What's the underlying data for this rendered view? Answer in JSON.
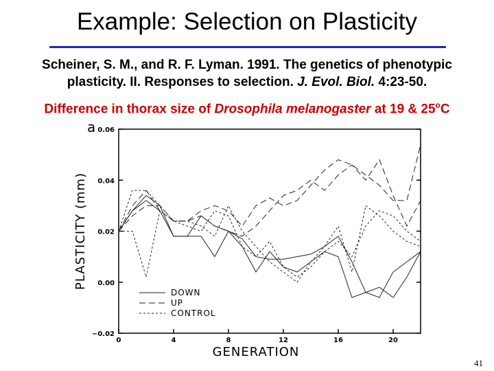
{
  "slide": {
    "title": "Example: Selection on Plasticity",
    "citation_line1": "Scheiner, S. M., and R. F. Lyman. 1991. The genetics of phenotypic",
    "citation_line2_a": "plasticity. II. Responses to selection. ",
    "citation_line2_journal": "J. Evol. Biol.",
    "citation_line2_b": " 4:23-50.",
    "subtitle_a": "Difference in thorax size of ",
    "subtitle_species": "Drosophila melanogaster",
    "subtitle_b": " at 19 & 25",
    "subtitle_degree": "o",
    "subtitle_c": "C",
    "page_number": "41",
    "rule_color": "#2222cc",
    "subtitle_color": "#cc0000"
  },
  "chart_data": {
    "type": "line",
    "panel_label": "a",
    "xlabel": "GENERATION",
    "ylabel": "PLASTICITY  (mm)",
    "xlim": [
      0,
      22
    ],
    "ylim": [
      -0.02,
      0.06
    ],
    "xticks": [
      0,
      4,
      8,
      12,
      16,
      20
    ],
    "yticks": [
      -0.02,
      0.0,
      0.02,
      0.04,
      0.06
    ],
    "ytick_labels": [
      "−0.02",
      "0.00",
      "0.02",
      "0.04",
      "0.06"
    ],
    "grid": false,
    "legend_position": "bottom-left",
    "series": [
      {
        "name": "DOWN",
        "style": "solid",
        "replicate": 1,
        "x": [
          0,
          1,
          2,
          3,
          4,
          5,
          6,
          7,
          8,
          9,
          10,
          11,
          12,
          13,
          14,
          15,
          16,
          17,
          18,
          19,
          20,
          21,
          22
        ],
        "y": [
          0.02,
          0.028,
          0.032,
          0.028,
          0.018,
          0.018,
          0.026,
          0.022,
          0.02,
          0.017,
          0.01,
          0.009,
          0.009,
          0.01,
          0.011,
          0.014,
          0.018,
          0.008,
          -0.004,
          -0.006,
          0.004,
          0.008,
          0.012
        ]
      },
      {
        "name": "DOWN",
        "style": "solid",
        "replicate": 2,
        "x": [
          0,
          1,
          2,
          3,
          4,
          5,
          6,
          7,
          8,
          9,
          10,
          11,
          12,
          13,
          14,
          15,
          16,
          17,
          18,
          19,
          20,
          21,
          22
        ],
        "y": [
          0.02,
          0.028,
          0.034,
          0.03,
          0.018,
          0.018,
          0.018,
          0.01,
          0.02,
          0.014,
          0.004,
          0.012,
          0.006,
          0.004,
          0.008,
          0.012,
          0.01,
          -0.006,
          -0.004,
          -0.002,
          -0.006,
          0.002,
          0.012
        ]
      },
      {
        "name": "UP",
        "style": "dashed",
        "replicate": 1,
        "x": [
          0,
          1,
          2,
          3,
          4,
          5,
          6,
          7,
          8,
          9,
          10,
          11,
          12,
          13,
          14,
          15,
          16,
          17,
          18,
          19,
          20,
          21,
          22
        ],
        "y": [
          0.02,
          0.026,
          0.03,
          0.03,
          0.024,
          0.024,
          0.028,
          0.03,
          0.028,
          0.022,
          0.03,
          0.033,
          0.03,
          0.032,
          0.038,
          0.044,
          0.048,
          0.046,
          0.042,
          0.038,
          0.032,
          0.032,
          0.054
        ]
      },
      {
        "name": "UP",
        "style": "dashed",
        "replicate": 2,
        "x": [
          0,
          1,
          2,
          3,
          4,
          5,
          6,
          7,
          8,
          9,
          10,
          11,
          12,
          13,
          14,
          15,
          16,
          17,
          18,
          19,
          20,
          21,
          22
        ],
        "y": [
          0.02,
          0.03,
          0.036,
          0.028,
          0.024,
          0.024,
          0.026,
          0.022,
          0.02,
          0.018,
          0.022,
          0.028,
          0.034,
          0.036,
          0.04,
          0.036,
          0.042,
          0.046,
          0.04,
          0.048,
          0.034,
          0.022,
          0.032
        ]
      },
      {
        "name": "CONTROL",
        "style": "dotted",
        "replicate": 1,
        "x": [
          0,
          1,
          2,
          3,
          4,
          5,
          6,
          7,
          8,
          9,
          10,
          11,
          12,
          13,
          14,
          15,
          16,
          17,
          18,
          19,
          20,
          21,
          22
        ],
        "y": [
          0.02,
          0.036,
          0.036,
          0.03,
          0.024,
          0.022,
          0.02,
          0.028,
          0.026,
          0.014,
          0.01,
          0.016,
          0.006,
          0.002,
          0.006,
          0.012,
          0.016,
          0.01,
          0.022,
          0.028,
          0.026,
          0.02,
          0.016
        ]
      },
      {
        "name": "CONTROL",
        "style": "dotted",
        "replicate": 2,
        "x": [
          0,
          1,
          2,
          3,
          4,
          5,
          6,
          7,
          8,
          9,
          10,
          11,
          12,
          13,
          14,
          15,
          16,
          17,
          18,
          19,
          20,
          21,
          22
        ],
        "y": [
          0.02,
          0.02,
          0.002,
          0.028,
          0.024,
          0.024,
          0.022,
          0.018,
          0.03,
          0.02,
          0.014,
          0.008,
          0.004,
          0.0,
          0.008,
          0.014,
          0.022,
          0.004,
          0.03,
          0.026,
          0.02,
          0.016,
          0.014
        ]
      }
    ],
    "legend": [
      {
        "label": "DOWN",
        "style": "solid"
      },
      {
        "label": "UP",
        "style": "dashed"
      },
      {
        "label": "CONTROL",
        "style": "dotted"
      }
    ]
  }
}
